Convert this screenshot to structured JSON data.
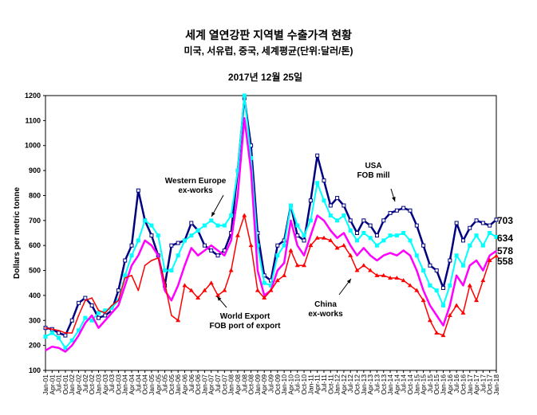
{
  "chart_data": {
    "type": "line",
    "title": "세계 열연강판 지역별 수출가격 현황",
    "subtitle": "미국, 서유럽, 중국, 세계평균(단위:달러/톤)",
    "date": "2017년 12월 25일",
    "ylabel": "Dollars per metric tonne",
    "xlabel": "",
    "ylim": [
      100,
      1200
    ],
    "yticks": [
      100,
      200,
      300,
      400,
      500,
      600,
      700,
      800,
      900,
      1000,
      1100,
      1200
    ],
    "grid": false,
    "x": [
      "Jan-01",
      "Apr-01",
      "Jul-01",
      "Oct-01",
      "Jan-02",
      "Apr-02",
      "Jul-02",
      "Oct-02",
      "Jan-03",
      "Apr-03",
      "Jul-03",
      "Oct-03",
      "Jan-04",
      "Apr-04",
      "Jul-04",
      "Oct-04",
      "Jan-05",
      "Apr-05",
      "Jul-05",
      "Oct-05",
      "Jan-06",
      "Apr-06",
      "Jul-06",
      "Oct-06",
      "Jan-07",
      "Apr-07",
      "Jul-07",
      "Oct-07",
      "Jan-08",
      "Apr-08",
      "Jul-08",
      "Oct-08",
      "Jan-09",
      "Apr-09",
      "Jul-09",
      "Oct-09",
      "Jan-10",
      "Apr-10",
      "Jul-10",
      "Oct-10",
      "Jan-11",
      "Apr-11",
      "Jul-11",
      "Oct-11",
      "Jan-12",
      "Apr-12",
      "Jul-12",
      "Oct-12",
      "Jan-13",
      "Apr-13",
      "Jul-13",
      "Oct-13",
      "Jan-14",
      "Apr-14",
      "Jul-14",
      "Oct-14",
      "Jan-15",
      "Apr-15",
      "Jul-15",
      "Oct-15",
      "Jan-16",
      "Apr-16",
      "Jul-16",
      "Oct-16",
      "Jan-17",
      "Apr-17",
      "Jul-17",
      "Oct-17",
      "Jan-18"
    ],
    "series": [
      {
        "name": "USA FOB mill",
        "color": "#000080",
        "marker": "hollow-square",
        "end_label": "703",
        "values": [
          270,
          265,
          250,
          240,
          300,
          370,
          390,
          360,
          310,
          320,
          340,
          420,
          540,
          600,
          820,
          700,
          640,
          560,
          440,
          600,
          610,
          620,
          690,
          660,
          600,
          580,
          560,
          580,
          650,
          900,
          1190,
          1000,
          650,
          480,
          460,
          600,
          620,
          760,
          640,
          620,
          780,
          960,
          860,
          760,
          790,
          760,
          700,
          650,
          700,
          680,
          640,
          700,
          730,
          740,
          750,
          740,
          680,
          600,
          520,
          500,
          430,
          540,
          690,
          620,
          670,
          700,
          690,
          680,
          703
        ]
      },
      {
        "name": "Western Europe ex-works",
        "color": "#00FFFF",
        "marker": "square",
        "end_label": "634",
        "values": [
          235,
          250,
          230,
          190,
          220,
          260,
          310,
          300,
          330,
          340,
          350,
          380,
          480,
          560,
          620,
          700,
          680,
          640,
          500,
          500,
          560,
          620,
          640,
          660,
          680,
          700,
          680,
          680,
          720,
          900,
          1200,
          950,
          600,
          450,
          440,
          560,
          600,
          760,
          680,
          640,
          700,
          850,
          780,
          720,
          700,
          720,
          660,
          620,
          650,
          630,
          600,
          620,
          640,
          640,
          650,
          620,
          560,
          500,
          440,
          420,
          360,
          440,
          560,
          520,
          600,
          640,
          600,
          650,
          634
        ]
      },
      {
        "name": "World Export FOB port of export",
        "color": "#FF00FF",
        "marker": "none",
        "end_label": "578",
        "values": [
          180,
          195,
          190,
          175,
          200,
          240,
          290,
          320,
          270,
          300,
          330,
          360,
          440,
          520,
          560,
          620,
          600,
          560,
          420,
          380,
          440,
          520,
          590,
          560,
          580,
          600,
          580,
          560,
          620,
          800,
          1110,
          900,
          500,
          400,
          420,
          500,
          530,
          700,
          600,
          560,
          640,
          720,
          700,
          660,
          630,
          650,
          600,
          560,
          590,
          560,
          540,
          560,
          570,
          560,
          580,
          560,
          500,
          420,
          360,
          320,
          280,
          360,
          480,
          440,
          520,
          540,
          500,
          560,
          578
        ]
      },
      {
        "name": "China ex-works",
        "color": "#FF0000",
        "marker": "triangle",
        "end_label": "558",
        "values": [
          270,
          265,
          260,
          250,
          250,
          320,
          380,
          390,
          340,
          330,
          360,
          380,
          470,
          480,
          420,
          520,
          540,
          550,
          450,
          320,
          300,
          440,
          420,
          390,
          420,
          450,
          400,
          420,
          500,
          640,
          720,
          600,
          420,
          390,
          420,
          460,
          480,
          580,
          520,
          520,
          600,
          630,
          630,
          620,
          590,
          600,
          560,
          500,
          520,
          500,
          480,
          480,
          470,
          470,
          460,
          440,
          420,
          380,
          300,
          250,
          240,
          320,
          360,
          330,
          440,
          380,
          460,
          540,
          558
        ]
      }
    ],
    "annotations": [
      {
        "text": [
          "Western Europe",
          "ex-works"
        ]
      },
      {
        "text": [
          "USA",
          "FOB mill"
        ]
      },
      {
        "text": [
          "World Export",
          "FOB port of export"
        ]
      },
      {
        "text": [
          "China",
          "ex-works"
        ]
      }
    ]
  }
}
